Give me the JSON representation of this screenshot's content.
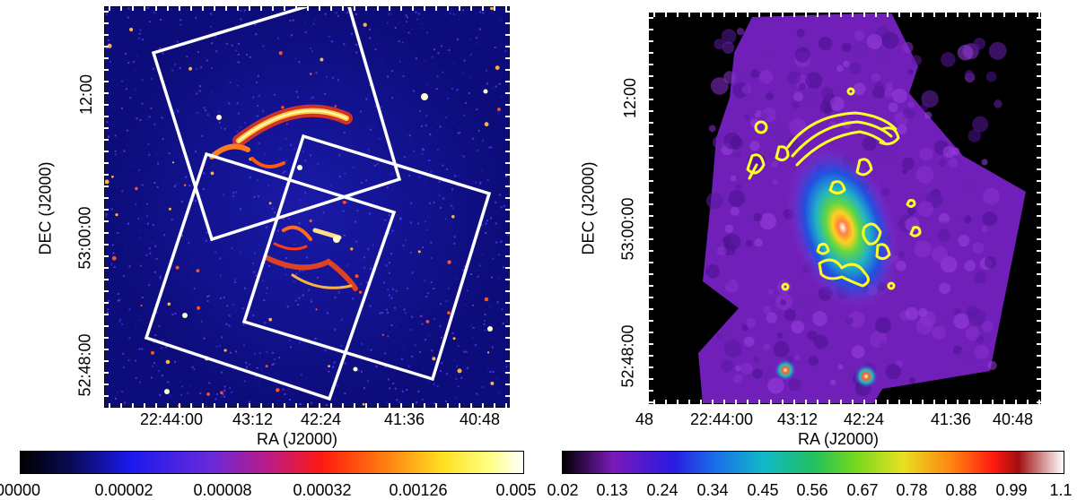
{
  "left_panel": {
    "x_axis_title": "RA (J2000)",
    "y_axis_title": "DEC (J2000)",
    "x_ticks": [
      "22:44:00",
      "43:12",
      "42:24",
      "41:36",
      "40:48"
    ],
    "y_ticks": [
      "12:00",
      "53:00:00",
      "52:48:00"
    ],
    "colorbar_ticks": [
      "00000",
      "0.00002",
      "0.00008",
      "0.00032",
      "0.00126",
      "0.005"
    ],
    "colors": {
      "background": "#0a0a6e",
      "emission": "#ff5a1e",
      "overlay": "#ffffff"
    }
  },
  "right_panel": {
    "x_axis_title": "RA (J2000)",
    "y_axis_title": "DEC (J2000)",
    "x_ticks": [
      "48",
      "22:44:00",
      "43:12",
      "42:24",
      "41:36",
      "40:48"
    ],
    "y_ticks": [
      "12:00",
      "53:00:00",
      "52:48:00"
    ],
    "colorbar_ticks": [
      "0.02",
      "0.13",
      "0.24",
      "0.34",
      "0.45",
      "0.56",
      "0.67",
      "0.78",
      "0.88",
      "0.99",
      "1.1"
    ],
    "colors": {
      "background": "#000000",
      "diffuse": "#7a24c8",
      "contours": "#ffff22"
    }
  }
}
